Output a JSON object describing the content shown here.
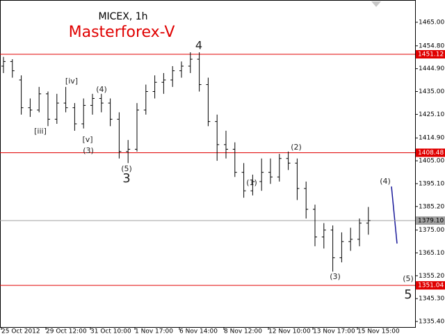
{
  "chart_data": {
    "type": "ohlc",
    "title": "MICEX, 1h",
    "subtitle": "Masterforex-V",
    "color": "#000000",
    "categories": [
      "25 Oct 2012",
      null,
      null,
      null,
      null,
      "29 Oct 12:00",
      null,
      null,
      null,
      null,
      "31 Oct 10:00",
      null,
      null,
      null,
      null,
      "1 Nov 17:00",
      null,
      null,
      null,
      null,
      "6 Nov 14:00",
      null,
      null,
      null,
      null,
      "8 Nov 12:00",
      null,
      null,
      null,
      null,
      "12 Nov 10:00",
      null,
      null,
      null,
      null,
      "13 Nov 17:00",
      null,
      null,
      null,
      null,
      "15 Nov 15:00",
      null,
      null,
      null,
      null
    ],
    "open": [
      1446,
      1448,
      1440,
      1428,
      1427,
      1434,
      1423,
      1430,
      1428,
      1421,
      1429,
      1432,
      1430,
      1423,
      1409,
      1410,
      1427,
      1435,
      1439,
      1440,
      1444,
      1446,
      1449,
      1438,
      1422,
      1412,
      1410,
      1400,
      1392,
      1396,
      1400,
      1398,
      1406,
      1404,
      1393,
      1384,
      1372,
      1375,
      1363,
      1370,
      1371,
      1378,
      null,
      null,
      null
    ],
    "high": [
      1450,
      1449,
      1442,
      1432,
      1437,
      1435,
      1434,
      1437,
      1430,
      1432,
      1434,
      1434,
      1432,
      1426,
      1414,
      1430,
      1438,
      1442,
      1443,
      1446,
      1448,
      1452,
      1452,
      1441,
      1425,
      1418,
      1413,
      1404,
      1399,
      1406,
      1406,
      1408,
      1409,
      1406,
      1396,
      1386,
      1378,
      1377,
      1374,
      1376,
      1380,
      1385,
      null,
      null,
      null
    ],
    "low": [
      1443,
      1441,
      1425,
      1424,
      1426,
      1420,
      1421,
      1426,
      1418,
      1419,
      1425,
      1426,
      1420,
      1406,
      1404,
      1409,
      1425,
      1432,
      1434,
      1437,
      1441,
      1443,
      1435,
      1420,
      1405,
      1406,
      1398,
      1389,
      1390,
      1392,
      1395,
      1396,
      1401,
      1388,
      1380,
      1368,
      1367,
      1357,
      1361,
      1366,
      1368,
      1373,
      null,
      null,
      null
    ],
    "close": [
      1448,
      1444,
      1428,
      1427,
      1434,
      1423,
      1430,
      1428,
      1421,
      1429,
      1432,
      1430,
      1423,
      1409,
      1410,
      1427,
      1435,
      1439,
      1440,
      1444,
      1446,
      1449,
      1438,
      1422,
      1412,
      1410,
      1400,
      1392,
      1396,
      1400,
      1398,
      1406,
      1404,
      1393,
      1384,
      1372,
      1375,
      1363,
      1370,
      1371,
      1378,
      1379.1,
      null,
      null,
      null
    ],
    "ylim": [
      1332.99,
      1474.64
    ],
    "yticks": [
      {
        "value": 1465,
        "label": "1465.00"
      },
      {
        "value": 1454.8,
        "label": "1454.80"
      },
      {
        "value": 1444.9,
        "label": "1444.90"
      },
      {
        "value": 1435,
        "label": "1435.00"
      },
      {
        "value": 1425.1,
        "label": "1425.10"
      },
      {
        "value": 1414.9,
        "label": "1414.90"
      },
      {
        "value": 1405,
        "label": "1405.00"
      },
      {
        "value": 1395.1,
        "label": "1395.10"
      },
      {
        "value": 1385.2,
        "label": "1385.20"
      },
      {
        "value": 1375,
        "label": "1375.00"
      },
      {
        "value": 1365.1,
        "label": "1365.10"
      },
      {
        "value": 1355.2,
        "label": "1355.20"
      },
      {
        "value": 1345.3,
        "label": "1345.30"
      },
      {
        "value": 1335.4,
        "label": "1335.40"
      }
    ],
    "levels": [
      {
        "value": 1451.12,
        "label": "1451.12",
        "color": "#e00000"
      },
      {
        "value": 1408.48,
        "label": "1408.48",
        "color": "#e00000"
      },
      {
        "value": 1379.1,
        "label": "1379.10",
        "color": "#a0a0a0"
      },
      {
        "value": 1351.04,
        "label": "1351.04",
        "color": "#e00000"
      }
    ],
    "annotations": [
      "4",
      "[iv]",
      "(4)",
      "[iii]",
      "[v]",
      "(3)",
      "(5)",
      "3",
      "(1)",
      "(2)",
      "(3)",
      "(4)",
      "(5)",
      "5"
    ]
  }
}
